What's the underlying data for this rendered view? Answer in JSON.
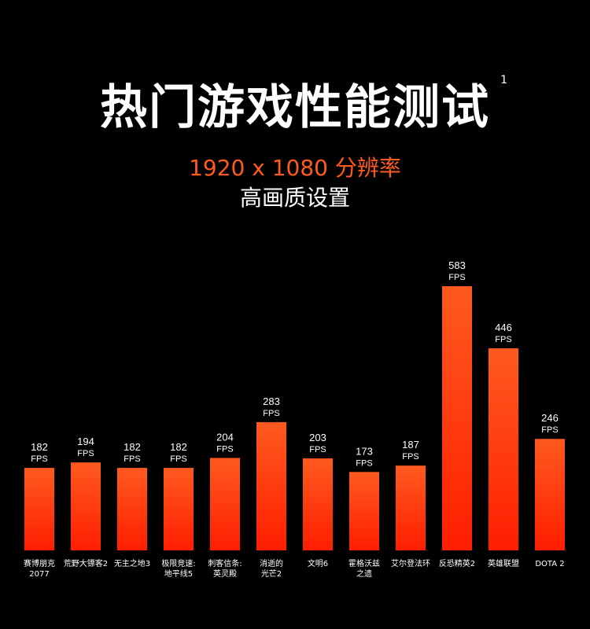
{
  "header": {
    "title": "热门游戏性能测试",
    "title_sup": "1",
    "subtitle": "1920 x 1080 分辨率",
    "subtitle2": "高画质设置"
  },
  "colors": {
    "background": "#000000",
    "bar_top": "#ff5a1f",
    "bar_bottom": "#ff1e00",
    "accent": "#ff5a1f"
  },
  "chart_data": {
    "type": "bar",
    "categories": [
      [
        "赛博朋克",
        "2077"
      ],
      [
        "荒野大镖客2"
      ],
      [
        "无主之地3"
      ],
      [
        "极限竞速:",
        "地平线5"
      ],
      [
        "刺客信条:",
        "英灵殿"
      ],
      [
        "消逝的",
        "光芒2"
      ],
      [
        "文明6"
      ],
      [
        "霍格沃兹",
        "之遗"
      ],
      [
        "艾尔登法环"
      ],
      [
        "反恐精英2"
      ],
      [
        "英雄联盟"
      ],
      [
        "DOTA 2"
      ]
    ],
    "values": [
      182,
      194,
      182,
      182,
      204,
      283,
      203,
      173,
      187,
      583,
      446,
      246
    ],
    "value_unit": "FPS",
    "ylim": [
      0,
      583
    ]
  }
}
